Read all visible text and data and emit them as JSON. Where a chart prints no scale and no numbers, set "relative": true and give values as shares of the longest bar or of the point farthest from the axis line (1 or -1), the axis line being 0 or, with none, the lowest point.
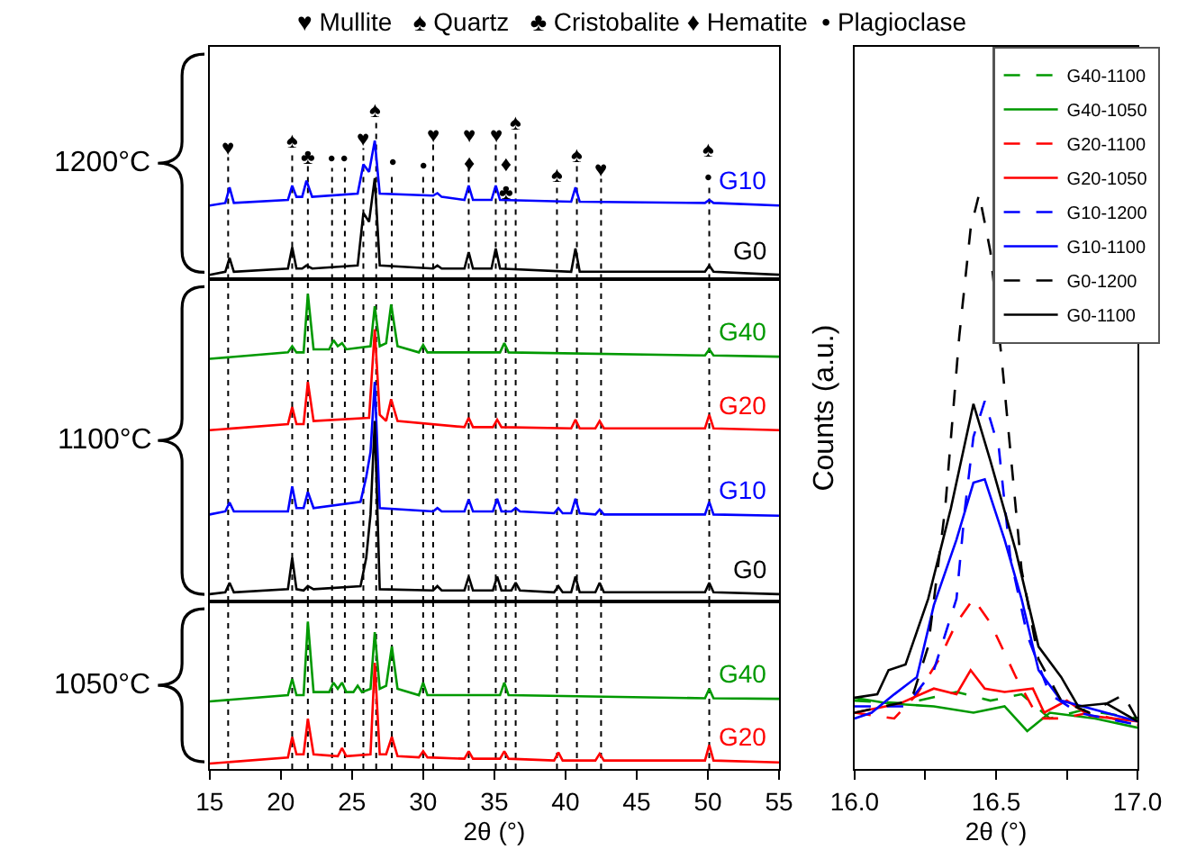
{
  "chart_data": [
    {
      "type": "line",
      "relative": true,
      "xlim": [
        15,
        55
      ],
      "legend": false,
      "tick_labels": false,
      "series": [
        {
          "name": "G10",
          "color": "#0000ff",
          "x": [
            15,
            16.1,
            16.4,
            16.7,
            20.5,
            20.8,
            21.1,
            21.5,
            21.8,
            22.2,
            25.4,
            25.8,
            26.2,
            26.6,
            26.95,
            30.7,
            31,
            31.3,
            32.9,
            33.2,
            33.5,
            34.8,
            35.1,
            35.4,
            40.4,
            40.7,
            41,
            49.8,
            50.1,
            50.4,
            55
          ],
          "values": [
            0.533,
            0.551,
            0.663,
            0.551,
            0.573,
            0.676,
            0.595,
            0.595,
            0.712,
            0.595,
            0.618,
            0.829,
            0.775,
            1.0,
            0.618,
            0.604,
            0.622,
            0.595,
            0.573,
            0.676,
            0.573,
            0.573,
            0.676,
            0.573,
            0.56,
            0.663,
            0.56,
            0.551,
            0.573,
            0.551,
            0.533
          ]
        },
        {
          "name": "G0",
          "color": "#000000",
          "x": [
            15,
            16.1,
            16.4,
            16.7,
            20.5,
            20.8,
            21.1,
            21.5,
            21.8,
            22.2,
            25.4,
            25.8,
            26.2,
            26.6,
            26.95,
            30.7,
            31,
            31.3,
            32.9,
            33.2,
            33.5,
            34.8,
            35.1,
            35.4,
            40.4,
            40.7,
            41,
            49.8,
            50.1,
            50.4,
            55
          ],
          "values": [
            0.034,
            0.056,
            0.155,
            0.056,
            0.079,
            0.232,
            0.079,
            0.079,
            0.101,
            0.079,
            0.101,
            0.479,
            0.416,
            0.73,
            0.101,
            0.079,
            0.101,
            0.079,
            0.079,
            0.196,
            0.079,
            0.079,
            0.223,
            0.079,
            0.056,
            0.223,
            0.056,
            0.056,
            0.101,
            0.056,
            0.034
          ]
        }
      ],
      "ref_lines": [
        {
          "axis": "x",
          "value": 16.3,
          "color": "#000000",
          "line_style": "dotted",
          "label": "♥"
        },
        {
          "axis": "x",
          "value": 20.8,
          "color": "#000000",
          "line_style": "dotted",
          "label": "♠"
        },
        {
          "axis": "x",
          "value": 21.9,
          "color": "#000000",
          "line_style": "dotted",
          "label": "♣"
        },
        {
          "axis": "x",
          "value": 23.6,
          "color": "#000000",
          "line_style": "dotted",
          "label": "•"
        },
        {
          "axis": "x",
          "value": 24.5,
          "color": "#000000",
          "line_style": "dotted",
          "label": "•"
        },
        {
          "axis": "x",
          "value": 25.8,
          "color": "#000000",
          "line_style": "dotted",
          "label": "♥"
        },
        {
          "axis": "x",
          "value": 26.7,
          "color": "#000000",
          "line_style": "dotted",
          "label": "♠"
        },
        {
          "axis": "x",
          "value": 27.8,
          "color": "#000000",
          "line_style": "dotted",
          "label": "•"
        },
        {
          "axis": "x",
          "value": 30.0,
          "color": "#000000",
          "line_style": "dotted",
          "label": "•"
        },
        {
          "axis": "x",
          "value": 30.7,
          "color": "#000000",
          "line_style": "dotted",
          "label": "♥"
        },
        {
          "axis": "x",
          "value": 33.2,
          "color": "#000000",
          "line_style": "dotted",
          "label": "♥\n♦"
        },
        {
          "axis": "x",
          "value": 35.1,
          "color": "#000000",
          "line_style": "dotted",
          "label": "♥"
        },
        {
          "axis": "x",
          "value": 35.8,
          "color": "#000000",
          "line_style": "dotted",
          "label": "♦\n♣"
        },
        {
          "axis": "x",
          "value": 36.5,
          "color": "#000000",
          "line_style": "dotted",
          "label": "♠"
        },
        {
          "axis": "x",
          "value": 39.4,
          "color": "#000000",
          "line_style": "dotted",
          "label": "♠"
        },
        {
          "axis": "x",
          "value": 40.8,
          "color": "#000000",
          "line_style": "dotted",
          "label": "♠"
        },
        {
          "axis": "x",
          "value": 42.5,
          "color": "#000000",
          "line_style": "dotted",
          "label": "♥"
        },
        {
          "axis": "x",
          "value": 50.1,
          "color": "#000000",
          "line_style": "dotted",
          "label": "♠\n•"
        }
      ],
      "annotations": [
        "♥ Mullite   ♠ Quartz   ♣ Cristobalite ♦ Hematite  • Plagioclase",
        "1200°C"
      ]
    },
    {
      "type": "line",
      "relative": true,
      "xlim": [
        15,
        55
      ],
      "legend": false,
      "tick_labels": false,
      "series": [
        {
          "name": "G40",
          "color": "#009900",
          "x": [
            15,
            20.5,
            20.8,
            21.1,
            21.6,
            21.9,
            22.3,
            23.4,
            23.7,
            24.0,
            24.3,
            24.6,
            26.3,
            26.6,
            26.95,
            27.4,
            27.75,
            28.2,
            29.7,
            30,
            30.3,
            35.4,
            35.7,
            36.0,
            49.8,
            50.1,
            50.4,
            55
          ],
          "values": [
            0.789,
            0.81,
            0.83,
            0.81,
            0.81,
            1.0,
            0.82,
            0.82,
            0.85,
            0.83,
            0.84,
            0.82,
            0.83,
            0.96,
            0.83,
            0.84,
            0.966,
            0.83,
            0.81,
            0.834,
            0.81,
            0.81,
            0.84,
            0.81,
            0.8,
            0.82,
            0.8,
            0.796
          ]
        },
        {
          "name": "G20",
          "color": "#ff0000",
          "x": [
            15,
            20.5,
            20.8,
            21.1,
            21.6,
            21.9,
            22.3,
            26.2,
            26.6,
            26.95,
            27.4,
            27.75,
            28.2,
            32.9,
            33.2,
            33.5,
            34.9,
            35.2,
            35.5,
            40.4,
            40.7,
            41,
            42.1,
            42.4,
            42.7,
            49.8,
            50.1,
            50.4,
            55
          ],
          "values": [
            0.557,
            0.577,
            0.632,
            0.577,
            0.577,
            0.714,
            0.587,
            0.597,
            0.885,
            0.607,
            0.587,
            0.658,
            0.587,
            0.567,
            0.597,
            0.567,
            0.567,
            0.591,
            0.567,
            0.563,
            0.591,
            0.563,
            0.563,
            0.587,
            0.563,
            0.563,
            0.607,
            0.563,
            0.557
          ]
        },
        {
          "name": "G10",
          "color": "#0000ff",
          "x": [
            15,
            16.1,
            16.4,
            16.7,
            20.5,
            20.8,
            21.1,
            21.6,
            21.9,
            22.3,
            25.6,
            26.0,
            26.3,
            26.6,
            26.95,
            30.7,
            31,
            31.3,
            32.9,
            33.2,
            33.5,
            34.9,
            35.2,
            35.5,
            36.2,
            36.5,
            36.8,
            39.2,
            39.5,
            39.8,
            40.4,
            40.7,
            41,
            42.1,
            42.4,
            42.7,
            49.8,
            50.1,
            50.4,
            55
          ],
          "values": [
            0.283,
            0.293,
            0.322,
            0.293,
            0.293,
            0.374,
            0.304,
            0.304,
            0.356,
            0.304,
            0.324,
            0.405,
            0.486,
            0.714,
            0.304,
            0.293,
            0.304,
            0.293,
            0.293,
            0.332,
            0.293,
            0.293,
            0.334,
            0.293,
            0.293,
            0.304,
            0.293,
            0.287,
            0.304,
            0.287,
            0.287,
            0.334,
            0.287,
            0.283,
            0.299,
            0.283,
            0.283,
            0.324,
            0.283,
            0.279
          ]
        },
        {
          "name": "G0",
          "color": "#000000",
          "x": [
            15,
            16.1,
            16.4,
            16.7,
            20.5,
            20.8,
            21.1,
            21.6,
            21.9,
            22.3,
            25.6,
            26.0,
            26.3,
            26.6,
            26.95,
            30.7,
            31,
            31.3,
            32.9,
            33.2,
            33.5,
            34.9,
            35.2,
            35.5,
            36.2,
            36.5,
            36.8,
            39.2,
            39.5,
            39.8,
            40.4,
            40.7,
            41,
            42.1,
            42.4,
            42.7,
            49.8,
            50.1,
            50.4,
            55
          ],
          "values": [
            0.024,
            0.03,
            0.061,
            0.03,
            0.04,
            0.142,
            0.04,
            0.036,
            0.05,
            0.04,
            0.05,
            0.142,
            0.283,
            0.587,
            0.04,
            0.036,
            0.05,
            0.036,
            0.036,
            0.081,
            0.036,
            0.036,
            0.081,
            0.036,
            0.036,
            0.061,
            0.036,
            0.03,
            0.05,
            0.03,
            0.03,
            0.081,
            0.03,
            0.03,
            0.061,
            0.03,
            0.03,
            0.061,
            0.03,
            0.024
          ]
        }
      ],
      "ref_lines": [
        {
          "axis": "x",
          "value": 16.3,
          "color": "#000000",
          "line_style": "dotted"
        },
        {
          "axis": "x",
          "value": 20.8,
          "color": "#000000",
          "line_style": "dotted"
        },
        {
          "axis": "x",
          "value": 21.9,
          "color": "#000000",
          "line_style": "dotted"
        },
        {
          "axis": "x",
          "value": 23.6,
          "color": "#000000",
          "line_style": "dotted"
        },
        {
          "axis": "x",
          "value": 24.5,
          "color": "#000000",
          "line_style": "dotted"
        },
        {
          "axis": "x",
          "value": 25.8,
          "color": "#000000",
          "line_style": "dotted"
        },
        {
          "axis": "x",
          "value": 26.7,
          "color": "#000000",
          "line_style": "dotted"
        },
        {
          "axis": "x",
          "value": 27.8,
          "color": "#000000",
          "line_style": "dotted"
        },
        {
          "axis": "x",
          "value": 30.0,
          "color": "#000000",
          "line_style": "dotted"
        },
        {
          "axis": "x",
          "value": 30.7,
          "color": "#000000",
          "line_style": "dotted"
        },
        {
          "axis": "x",
          "value": 33.2,
          "color": "#000000",
          "line_style": "dotted"
        },
        {
          "axis": "x",
          "value": 35.1,
          "color": "#000000",
          "line_style": "dotted"
        },
        {
          "axis": "x",
          "value": 35.8,
          "color": "#000000",
          "line_style": "dotted"
        },
        {
          "axis": "x",
          "value": 36.5,
          "color": "#000000",
          "line_style": "dotted"
        },
        {
          "axis": "x",
          "value": 39.4,
          "color": "#000000",
          "line_style": "dotted"
        },
        {
          "axis": "x",
          "value": 40.8,
          "color": "#000000",
          "line_style": "dotted"
        },
        {
          "axis": "x",
          "value": 42.5,
          "color": "#000000",
          "line_style": "dotted"
        },
        {
          "axis": "x",
          "value": 50.1,
          "color": "#000000",
          "line_style": "dotted"
        }
      ],
      "annotations": [
        "1100°C"
      ]
    },
    {
      "type": "line",
      "relative": true,
      "xlabel": "2θ (°)",
      "xlim": [
        15,
        55
      ],
      "xticks": [
        15,
        20,
        25,
        30,
        35,
        40,
        45,
        50,
        55
      ],
      "legend": false,
      "tick_labels": "x",
      "series": [
        {
          "name": "G40",
          "color": "#009900",
          "x": [
            15,
            20.5,
            20.8,
            21.1,
            21.6,
            21.9,
            22.3,
            23.4,
            23.7,
            24.0,
            24.3,
            24.6,
            25.1,
            25.4,
            25.7,
            26.3,
            26.6,
            26.95,
            27.4,
            27.8,
            28.2,
            29.7,
            30,
            30.3,
            35.4,
            35.7,
            36.0,
            49.8,
            50.1,
            50.4,
            55
          ],
          "values": [
            0.459,
            0.501,
            0.611,
            0.501,
            0.501,
            1.0,
            0.522,
            0.522,
            0.586,
            0.544,
            0.586,
            0.522,
            0.522,
            0.565,
            0.522,
            0.544,
            0.928,
            0.544,
            0.565,
            0.831,
            0.544,
            0.501,
            0.586,
            0.501,
            0.501,
            0.586,
            0.501,
            0.48,
            0.544,
            0.48,
            0.476
          ]
        },
        {
          "name": "G20",
          "color": "#ff0000",
          "x": [
            15,
            20.5,
            20.8,
            21.1,
            21.6,
            21.9,
            22.3,
            24.0,
            24.3,
            24.6,
            26.3,
            26.6,
            26.95,
            27.4,
            27.8,
            28.2,
            29.7,
            30,
            30.3,
            32.9,
            33.2,
            33.5,
            35.4,
            35.7,
            36.0,
            39.2,
            39.5,
            39.8,
            42.1,
            42.4,
            42.7,
            49.8,
            50.1,
            50.4,
            55
          ],
          "values": [
            0.037,
            0.079,
            0.218,
            0.1,
            0.1,
            0.341,
            0.1,
            0.087,
            0.142,
            0.087,
            0.1,
            0.721,
            0.1,
            0.1,
            0.218,
            0.087,
            0.079,
            0.121,
            0.079,
            0.07,
            0.121,
            0.07,
            0.07,
            0.121,
            0.07,
            0.058,
            0.113,
            0.058,
            0.058,
            0.104,
            0.058,
            0.058,
            0.163,
            0.058,
            0.045
          ]
        }
      ],
      "ref_lines": [
        {
          "axis": "x",
          "value": 16.3,
          "color": "#000000",
          "line_style": "dotted"
        },
        {
          "axis": "x",
          "value": 20.8,
          "color": "#000000",
          "line_style": "dotted"
        },
        {
          "axis": "x",
          "value": 21.9,
          "color": "#000000",
          "line_style": "dotted"
        },
        {
          "axis": "x",
          "value": 23.6,
          "color": "#000000",
          "line_style": "dotted"
        },
        {
          "axis": "x",
          "value": 24.5,
          "color": "#000000",
          "line_style": "dotted"
        },
        {
          "axis": "x",
          "value": 25.8,
          "color": "#000000",
          "line_style": "dotted"
        },
        {
          "axis": "x",
          "value": 26.7,
          "color": "#000000",
          "line_style": "dotted"
        },
        {
          "axis": "x",
          "value": 27.8,
          "color": "#000000",
          "line_style": "dotted"
        },
        {
          "axis": "x",
          "value": 30.0,
          "color": "#000000",
          "line_style": "dotted"
        },
        {
          "axis": "x",
          "value": 30.7,
          "color": "#000000",
          "line_style": "dotted"
        },
        {
          "axis": "x",
          "value": 33.2,
          "color": "#000000",
          "line_style": "dotted"
        },
        {
          "axis": "x",
          "value": 35.1,
          "color": "#000000",
          "line_style": "dotted"
        },
        {
          "axis": "x",
          "value": 35.8,
          "color": "#000000",
          "line_style": "dotted"
        },
        {
          "axis": "x",
          "value": 36.5,
          "color": "#000000",
          "line_style": "dotted"
        },
        {
          "axis": "x",
          "value": 39.4,
          "color": "#000000",
          "line_style": "dotted"
        },
        {
          "axis": "x",
          "value": 40.8,
          "color": "#000000",
          "line_style": "dotted"
        },
        {
          "axis": "x",
          "value": 42.5,
          "color": "#000000",
          "line_style": "dotted"
        },
        {
          "axis": "x",
          "value": 50.1,
          "color": "#000000",
          "line_style": "dotted"
        }
      ],
      "annotations": [
        "1050°C"
      ]
    },
    {
      "type": "line",
      "relative": true,
      "xlabel": "2θ (°)",
      "ylabel": "Counts (a.u.)",
      "xlim": [
        16.0,
        17.0
      ],
      "xticks": [
        {
          "value": 16.0,
          "label": "16.0"
        },
        {
          "value": 16.25,
          "label": null
        },
        {
          "value": 16.5,
          "label": "16.5"
        },
        {
          "value": 16.75,
          "label": null
        },
        {
          "value": 17.0,
          "label": "17.0"
        }
      ],
      "legend": "top right",
      "tick_labels": "x",
      "series": [
        {
          "name": "G40-1100",
          "color": "#009900",
          "line_style": "dashed",
          "x": [
            16.0,
            16.18,
            16.36,
            16.48,
            16.59,
            16.69,
            16.81,
            17.0
          ],
          "values": [
            0.119,
            0.114,
            0.134,
            0.119,
            0.13,
            0.088,
            0.103,
            0.088
          ]
        },
        {
          "name": "G40-1050",
          "color": "#009900",
          "line_style": "solid",
          "x": [
            16.0,
            16.12,
            16.28,
            16.42,
            16.53,
            16.61,
            16.69,
            16.85,
            17.0
          ],
          "values": [
            0.124,
            0.114,
            0.109,
            0.098,
            0.109,
            0.066,
            0.098,
            0.088,
            0.072
          ]
        },
        {
          "name": "G20-1100",
          "color": "#ff0000",
          "line_style": "dashed",
          "x": [
            16.0,
            16.14,
            16.22,
            16.3,
            16.36,
            16.42,
            16.48,
            16.57,
            16.65,
            16.73,
            16.83,
            17.0
          ],
          "values": [
            0.098,
            0.088,
            0.13,
            0.192,
            0.254,
            0.296,
            0.254,
            0.16,
            0.088,
            0.088,
            0.098,
            0.077
          ]
        },
        {
          "name": "G20-1050",
          "color": "#ff0000",
          "line_style": "solid",
          "x": [
            16.0,
            16.16,
            16.28,
            16.36,
            16.41,
            16.46,
            16.53,
            16.63,
            16.67,
            16.75,
            16.83,
            17.0
          ],
          "values": [
            0.098,
            0.114,
            0.14,
            0.13,
            0.172,
            0.14,
            0.134,
            0.14,
            0.098,
            0.119,
            0.093,
            0.083
          ]
        },
        {
          "name": "G10-1200",
          "color": "#0000ff",
          "line_style": "dashed",
          "x": [
            16.0,
            16.18,
            16.28,
            16.36,
            16.39,
            16.42,
            16.46,
            16.51,
            16.55,
            16.61,
            16.69,
            16.79,
            17.0
          ],
          "values": [
            0.109,
            0.109,
            0.172,
            0.296,
            0.453,
            0.578,
            0.64,
            0.557,
            0.369,
            0.233,
            0.13,
            0.098,
            0.077
          ]
        },
        {
          "name": "G10-1100",
          "color": "#0000ff",
          "line_style": "solid",
          "x": [
            16.0,
            16.06,
            16.14,
            16.22,
            16.28,
            16.36,
            16.42,
            16.46,
            16.53,
            16.59,
            16.65,
            16.73,
            16.85,
            17.0
          ],
          "values": [
            0.088,
            0.098,
            0.13,
            0.16,
            0.285,
            0.399,
            0.498,
            0.504,
            0.399,
            0.296,
            0.172,
            0.119,
            0.103,
            0.083
          ]
        },
        {
          "name": "G0-1200",
          "color": "#000000",
          "line_style": "dashed",
          "x": [
            16.0,
            16.2,
            16.26,
            16.32,
            16.37,
            16.41,
            16.44,
            16.48,
            16.52,
            16.55,
            16.59,
            16.65,
            16.73,
            16.83,
            16.95,
            17.0
          ],
          "values": [
            0.098,
            0.119,
            0.213,
            0.453,
            0.753,
            0.94,
            1.0,
            0.9,
            0.712,
            0.556,
            0.347,
            0.191,
            0.119,
            0.098,
            0.129,
            0.085
          ]
        },
        {
          "name": "G0-1100",
          "color": "#000000",
          "line_style": "solid",
          "x": [
            16.0,
            16.08,
            16.12,
            16.18,
            16.26,
            16.34,
            16.42,
            16.48,
            16.57,
            16.65,
            16.73,
            16.79,
            16.89,
            17.0
          ],
          "values": [
            0.124,
            0.13,
            0.172,
            0.182,
            0.296,
            0.453,
            0.635,
            0.536,
            0.379,
            0.213,
            0.16,
            0.109,
            0.114,
            0.083
          ]
        }
      ]
    }
  ]
}
